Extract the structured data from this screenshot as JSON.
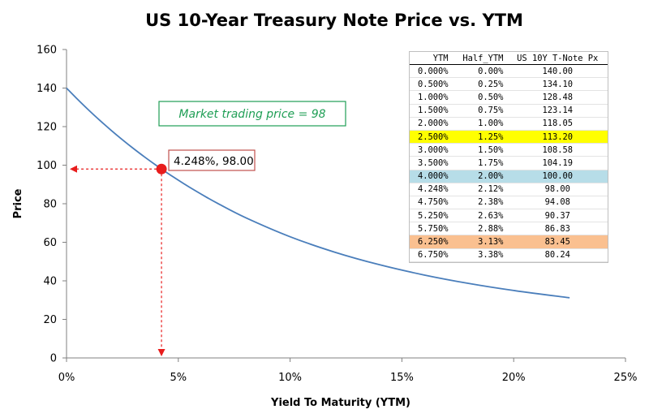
{
  "chart_data": {
    "type": "line",
    "title": "US 10-Year Treasury Note Price vs. YTM",
    "xlabel": "Yield To Maturity (YTM)",
    "ylabel": "Price",
    "xlim": [
      0,
      25
    ],
    "ylim": [
      0,
      160
    ],
    "x_ticks": [
      "0%",
      "5%",
      "10%",
      "15%",
      "20%",
      "25%"
    ],
    "y_ticks": [
      "0",
      "20",
      "40",
      "60",
      "80",
      "100",
      "120",
      "140",
      "160"
    ],
    "series": [
      {
        "color": "#4a7ebb",
        "x": [
          0,
          0.5,
          1,
          1.5,
          2,
          2.5,
          3,
          3.5,
          4,
          4.248,
          4.75,
          5.25,
          5.75,
          6.25,
          6.75,
          8,
          10,
          12,
          14,
          16,
          18,
          20,
          22.5
        ],
        "y": [
          140,
          134.1,
          128.48,
          123.14,
          118.05,
          113.2,
          108.58,
          104.19,
          100,
          98,
          94.08,
          90.37,
          86.83,
          83.45,
          80.24,
          72.82,
          62.88,
          54.86,
          48.35,
          43.02,
          38.63,
          34.99,
          31.2
        ]
      }
    ],
    "highlight_point": {
      "x": 4.248,
      "y": 98,
      "label": "4.248%, 98.00",
      "color": "#e81c1c"
    },
    "annotation": {
      "text": "Market trading price = 98",
      "color": "#1f9e55"
    },
    "grid": false
  },
  "table": {
    "headers": [
      "YTM",
      "Half_YTM",
      "US 10Y T-Note Px"
    ],
    "rows": [
      {
        "ytm": "0.000%",
        "half": "0.00%",
        "px": "140.00",
        "hl": ""
      },
      {
        "ytm": "0.500%",
        "half": "0.25%",
        "px": "134.10",
        "hl": ""
      },
      {
        "ytm": "1.000%",
        "half": "0.50%",
        "px": "128.48",
        "hl": ""
      },
      {
        "ytm": "1.500%",
        "half": "0.75%",
        "px": "123.14",
        "hl": ""
      },
      {
        "ytm": "2.000%",
        "half": "1.00%",
        "px": "118.05",
        "hl": ""
      },
      {
        "ytm": "2.500%",
        "half": "1.25%",
        "px": "113.20",
        "hl": "yellow"
      },
      {
        "ytm": "3.000%",
        "half": "1.50%",
        "px": "108.58",
        "hl": ""
      },
      {
        "ytm": "3.500%",
        "half": "1.75%",
        "px": "104.19",
        "hl": ""
      },
      {
        "ytm": "4.000%",
        "half": "2.00%",
        "px": "100.00",
        "hl": "blue"
      },
      {
        "ytm": "4.248%",
        "half": "2.12%",
        "px": "98.00",
        "hl": ""
      },
      {
        "ytm": "4.750%",
        "half": "2.38%",
        "px": "94.08",
        "hl": ""
      },
      {
        "ytm": "5.250%",
        "half": "2.63%",
        "px": "90.37",
        "hl": ""
      },
      {
        "ytm": "5.750%",
        "half": "2.88%",
        "px": "86.83",
        "hl": ""
      },
      {
        "ytm": "6.250%",
        "half": "3.13%",
        "px": "83.45",
        "hl": "orange"
      },
      {
        "ytm": "6.750%",
        "half": "3.38%",
        "px": "80.24",
        "hl": ""
      }
    ]
  }
}
